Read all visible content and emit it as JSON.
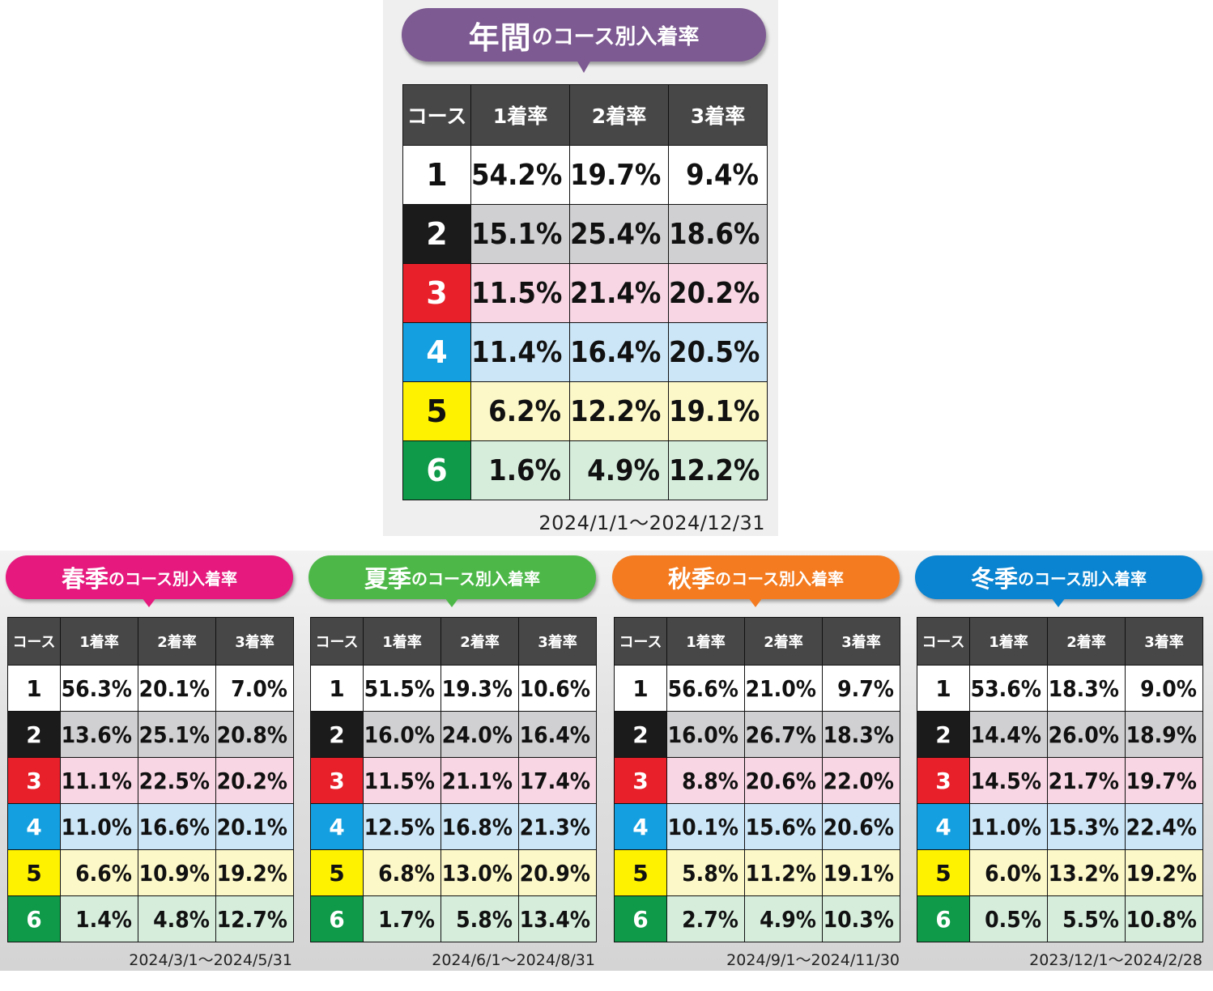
{
  "colors": {
    "annual_banner": "#7d5a92",
    "spring_banner": "#e5197e",
    "summer_banner": "#4db848",
    "autumn_banner": "#f47b20",
    "winter_banner": "#0a84d0",
    "header_bg": "#474747"
  },
  "annual": {
    "title_big": "年間",
    "title_small": "のコース別入着率",
    "date_range": "2024/1/1～2024/12/31",
    "headers": [
      "コース",
      "1着率",
      "2着率",
      "3着率"
    ],
    "rows": [
      {
        "course": "1",
        "v": [
          "54.2%",
          "19.7%",
          "9.4%"
        ]
      },
      {
        "course": "2",
        "v": [
          "15.1%",
          "25.4%",
          "18.6%"
        ]
      },
      {
        "course": "3",
        "v": [
          "11.5%",
          "21.4%",
          "20.2%"
        ]
      },
      {
        "course": "4",
        "v": [
          "11.4%",
          "16.4%",
          "20.5%"
        ]
      },
      {
        "course": "5",
        "v": [
          "6.2%",
          "12.2%",
          "19.1%"
        ]
      },
      {
        "course": "6",
        "v": [
          "1.6%",
          "4.9%",
          "12.2%"
        ]
      }
    ]
  },
  "spring": {
    "title_big": "春季",
    "title_small": "のコース別入着率",
    "date_range": "2024/3/1～2024/5/31",
    "headers": [
      "コース",
      "1着率",
      "2着率",
      "3着率"
    ],
    "rows": [
      {
        "course": "1",
        "v": [
          "56.3%",
          "20.1%",
          "7.0%"
        ]
      },
      {
        "course": "2",
        "v": [
          "13.6%",
          "25.1%",
          "20.8%"
        ]
      },
      {
        "course": "3",
        "v": [
          "11.1%",
          "22.5%",
          "20.2%"
        ]
      },
      {
        "course": "4",
        "v": [
          "11.0%",
          "16.6%",
          "20.1%"
        ]
      },
      {
        "course": "5",
        "v": [
          "6.6%",
          "10.9%",
          "19.2%"
        ]
      },
      {
        "course": "6",
        "v": [
          "1.4%",
          "4.8%",
          "12.7%"
        ]
      }
    ]
  },
  "summer": {
    "title_big": "夏季",
    "title_small": "のコース別入着率",
    "date_range": "2024/6/1～2024/8/31",
    "headers": [
      "コース",
      "1着率",
      "2着率",
      "3着率"
    ],
    "rows": [
      {
        "course": "1",
        "v": [
          "51.5%",
          "19.3%",
          "10.6%"
        ]
      },
      {
        "course": "2",
        "v": [
          "16.0%",
          "24.0%",
          "16.4%"
        ]
      },
      {
        "course": "3",
        "v": [
          "11.5%",
          "21.1%",
          "17.4%"
        ]
      },
      {
        "course": "4",
        "v": [
          "12.5%",
          "16.8%",
          "21.3%"
        ]
      },
      {
        "course": "5",
        "v": [
          "6.8%",
          "13.0%",
          "20.9%"
        ]
      },
      {
        "course": "6",
        "v": [
          "1.7%",
          "5.8%",
          "13.4%"
        ]
      }
    ]
  },
  "autumn": {
    "title_big": "秋季",
    "title_small": "のコース別入着率",
    "date_range": "2024/9/1～2024/11/30",
    "headers": [
      "コース",
      "1着率",
      "2着率",
      "3着率"
    ],
    "rows": [
      {
        "course": "1",
        "v": [
          "56.6%",
          "21.0%",
          "9.7%"
        ]
      },
      {
        "course": "2",
        "v": [
          "16.0%",
          "26.7%",
          "18.3%"
        ]
      },
      {
        "course": "3",
        "v": [
          "8.8%",
          "20.6%",
          "22.0%"
        ]
      },
      {
        "course": "4",
        "v": [
          "10.1%",
          "15.6%",
          "20.6%"
        ]
      },
      {
        "course": "5",
        "v": [
          "5.8%",
          "11.2%",
          "19.1%"
        ]
      },
      {
        "course": "6",
        "v": [
          "2.7%",
          "4.9%",
          "10.3%"
        ]
      }
    ]
  },
  "winter": {
    "title_big": "冬季",
    "title_small": "のコース別入着率",
    "date_range": "2023/12/1～2024/2/28",
    "headers": [
      "コース",
      "1着率",
      "2着率",
      "3着率"
    ],
    "rows": [
      {
        "course": "1",
        "v": [
          "53.6%",
          "18.3%",
          "9.0%"
        ]
      },
      {
        "course": "2",
        "v": [
          "14.4%",
          "26.0%",
          "18.9%"
        ]
      },
      {
        "course": "3",
        "v": [
          "14.5%",
          "21.7%",
          "19.7%"
        ]
      },
      {
        "course": "4",
        "v": [
          "11.0%",
          "15.3%",
          "22.4%"
        ]
      },
      {
        "course": "5",
        "v": [
          "6.0%",
          "13.2%",
          "19.2%"
        ]
      },
      {
        "course": "6",
        "v": [
          "0.5%",
          "5.5%",
          "10.8%"
        ]
      }
    ]
  },
  "chart_data": [
    {
      "type": "table",
      "title": "年間のコース別入着率",
      "columns": [
        "コース",
        "1着率",
        "2着率",
        "3着率"
      ],
      "rows": [
        [
          "1",
          "54.2%",
          "19.7%",
          "9.4%"
        ],
        [
          "2",
          "15.1%",
          "25.4%",
          "18.6%"
        ],
        [
          "3",
          "11.5%",
          "21.4%",
          "20.2%"
        ],
        [
          "4",
          "11.4%",
          "16.4%",
          "20.5%"
        ],
        [
          "5",
          "6.2%",
          "12.2%",
          "19.1%"
        ],
        [
          "6",
          "1.6%",
          "4.9%",
          "12.2%"
        ]
      ]
    },
    {
      "type": "table",
      "title": "春季のコース別入着率",
      "columns": [
        "コース",
        "1着率",
        "2着率",
        "3着率"
      ],
      "rows": [
        [
          "1",
          "56.3%",
          "20.1%",
          "7.0%"
        ],
        [
          "2",
          "13.6%",
          "25.1%",
          "20.8%"
        ],
        [
          "3",
          "11.1%",
          "22.5%",
          "20.2%"
        ],
        [
          "4",
          "11.0%",
          "16.6%",
          "20.1%"
        ],
        [
          "5",
          "6.6%",
          "10.9%",
          "19.2%"
        ],
        [
          "6",
          "1.4%",
          "4.8%",
          "12.7%"
        ]
      ]
    },
    {
      "type": "table",
      "title": "夏季のコース別入着率",
      "columns": [
        "コース",
        "1着率",
        "2着率",
        "3着率"
      ],
      "rows": [
        [
          "1",
          "51.5%",
          "19.3%",
          "10.6%"
        ],
        [
          "2",
          "16.0%",
          "24.0%",
          "16.4%"
        ],
        [
          "3",
          "11.5%",
          "21.1%",
          "17.4%"
        ],
        [
          "4",
          "12.5%",
          "16.8%",
          "21.3%"
        ],
        [
          "5",
          "6.8%",
          "13.0%",
          "20.9%"
        ],
        [
          "6",
          "1.7%",
          "5.8%",
          "13.4%"
        ]
      ]
    },
    {
      "type": "table",
      "title": "秋季のコース別入着率",
      "columns": [
        "コース",
        "1着率",
        "2着率",
        "3着率"
      ],
      "rows": [
        [
          "1",
          "56.6%",
          "21.0%",
          "9.7%"
        ],
        [
          "2",
          "16.0%",
          "26.7%",
          "18.3%"
        ],
        [
          "3",
          "8.8%",
          "20.6%",
          "22.0%"
        ],
        [
          "4",
          "10.1%",
          "15.6%",
          "20.6%"
        ],
        [
          "5",
          "5.8%",
          "11.2%",
          "19.1%"
        ],
        [
          "6",
          "2.7%",
          "4.9%",
          "10.3%"
        ]
      ]
    },
    {
      "type": "table",
      "title": "冬季のコース別入着率",
      "columns": [
        "コース",
        "1着率",
        "2着率",
        "3着率"
      ],
      "rows": [
        [
          "1",
          "53.6%",
          "18.3%",
          "9.0%"
        ],
        [
          "2",
          "14.4%",
          "26.0%",
          "18.9%"
        ],
        [
          "3",
          "14.5%",
          "21.7%",
          "19.7%"
        ],
        [
          "4",
          "11.0%",
          "15.3%",
          "22.4%"
        ],
        [
          "5",
          "6.0%",
          "13.2%",
          "19.2%"
        ],
        [
          "6",
          "0.5%",
          "5.5%",
          "10.8%"
        ]
      ]
    }
  ]
}
